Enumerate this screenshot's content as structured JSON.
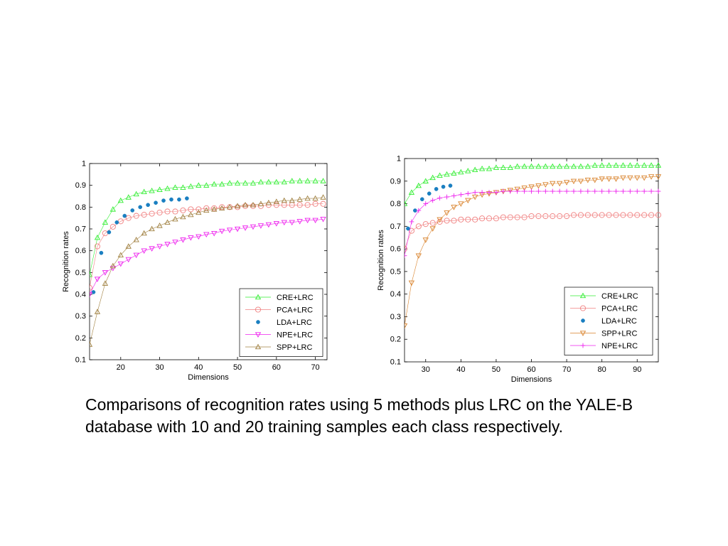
{
  "chart_data": [
    {
      "type": "line",
      "xlabel": "Dimensions",
      "ylabel": "Recognition rates",
      "xlim": [
        12,
        73
      ],
      "ylim": [
        0.1,
        1.0
      ],
      "xticks": [
        20,
        30,
        40,
        50,
        60,
        70
      ],
      "yticks": [
        0.1,
        0.2,
        0.3,
        0.4,
        0.5,
        0.6,
        0.7,
        0.8,
        0.9,
        1
      ],
      "ytick_labels": [
        "0.1",
        "0.2",
        "0.3",
        "0.4",
        "0.5",
        "0.6",
        "0.7",
        "0.8",
        "0.9",
        "1"
      ],
      "grid": false,
      "legend_position": "bottom-right",
      "series": [
        {
          "name": "CRE+LRC",
          "color": "#33ee33",
          "marker": "tri-up",
          "x": [
            12,
            14,
            16,
            18,
            20,
            22,
            24,
            26,
            28,
            30,
            32,
            34,
            36,
            38,
            40,
            42,
            44,
            46,
            48,
            50,
            52,
            54,
            56,
            58,
            60,
            62,
            64,
            66,
            68,
            70,
            72
          ],
          "y": [
            0.49,
            0.66,
            0.73,
            0.79,
            0.83,
            0.845,
            0.86,
            0.87,
            0.875,
            0.88,
            0.885,
            0.89,
            0.89,
            0.895,
            0.9,
            0.9,
            0.905,
            0.905,
            0.91,
            0.91,
            0.91,
            0.91,
            0.915,
            0.915,
            0.915,
            0.915,
            0.92,
            0.92,
            0.92,
            0.92,
            0.92
          ]
        },
        {
          "name": "PCA+LRC",
          "color": "#f08080",
          "marker": "circle",
          "x": [
            12,
            14,
            16,
            18,
            20,
            22,
            24,
            26,
            28,
            30,
            32,
            34,
            36,
            38,
            40,
            42,
            44,
            46,
            48,
            50,
            52,
            54,
            56,
            58,
            60,
            62,
            64,
            66,
            68,
            70,
            72
          ],
          "y": [
            0.43,
            0.62,
            0.68,
            0.71,
            0.735,
            0.75,
            0.76,
            0.765,
            0.77,
            0.775,
            0.78,
            0.78,
            0.785,
            0.79,
            0.79,
            0.795,
            0.795,
            0.8,
            0.8,
            0.8,
            0.805,
            0.805,
            0.805,
            0.81,
            0.81,
            0.81,
            0.81,
            0.81,
            0.81,
            0.815,
            0.815
          ]
        },
        {
          "name": "LDA+LRC",
          "color": "#1a7fc1",
          "marker": "dot",
          "x": [
            13,
            15,
            17,
            19,
            21,
            23,
            25,
            27,
            29,
            31,
            33,
            35,
            37
          ],
          "y": [
            0.41,
            0.59,
            0.685,
            0.73,
            0.76,
            0.785,
            0.8,
            0.81,
            0.82,
            0.83,
            0.835,
            0.835,
            0.84
          ]
        },
        {
          "name": "NPE+LRC",
          "color": "#ee22ee",
          "marker": "tri-down",
          "x": [
            12,
            14,
            16,
            18,
            20,
            22,
            24,
            26,
            28,
            30,
            32,
            34,
            36,
            38,
            40,
            42,
            44,
            46,
            48,
            50,
            52,
            54,
            56,
            58,
            60,
            62,
            64,
            66,
            68,
            70,
            72
          ],
          "y": [
            0.4,
            0.47,
            0.5,
            0.52,
            0.54,
            0.56,
            0.58,
            0.6,
            0.61,
            0.62,
            0.63,
            0.64,
            0.65,
            0.66,
            0.665,
            0.675,
            0.68,
            0.69,
            0.695,
            0.7,
            0.705,
            0.71,
            0.715,
            0.72,
            0.725,
            0.73,
            0.73,
            0.735,
            0.74,
            0.74,
            0.745
          ]
        },
        {
          "name": "SPP+LRC",
          "color": "#a08040",
          "marker": "tri-up",
          "x": [
            12,
            14,
            16,
            18,
            20,
            22,
            24,
            26,
            28,
            30,
            32,
            34,
            36,
            38,
            40,
            42,
            44,
            46,
            48,
            50,
            52,
            54,
            56,
            58,
            60,
            62,
            64,
            66,
            68,
            70,
            72
          ],
          "y": [
            0.17,
            0.32,
            0.45,
            0.53,
            0.58,
            0.62,
            0.65,
            0.68,
            0.7,
            0.715,
            0.73,
            0.745,
            0.755,
            0.765,
            0.775,
            0.785,
            0.79,
            0.795,
            0.8,
            0.805,
            0.81,
            0.81,
            0.815,
            0.82,
            0.825,
            0.83,
            0.83,
            0.835,
            0.84,
            0.84,
            0.845
          ]
        }
      ]
    },
    {
      "type": "line",
      "xlabel": "Dimensions",
      "ylabel": "Recognition rates",
      "xlim": [
        24,
        96
      ],
      "ylim": [
        0.1,
        1.0
      ],
      "xticks": [
        30,
        40,
        50,
        60,
        70,
        80,
        90
      ],
      "yticks": [
        0.1,
        0.2,
        0.3,
        0.4,
        0.5,
        0.6,
        0.7,
        0.8,
        0.9,
        1
      ],
      "ytick_labels": [
        "0.1",
        "0.2",
        "0.3",
        "0.4",
        "0.5",
        "0.6",
        "0.7",
        "0.8",
        "0.9",
        "1"
      ],
      "grid": false,
      "legend_position": "bottom-right",
      "series": [
        {
          "name": "CRE+LRC",
          "color": "#33ee33",
          "marker": "tri-up",
          "x": [
            24,
            26,
            28,
            30,
            32,
            34,
            36,
            38,
            40,
            42,
            44,
            46,
            48,
            50,
            52,
            54,
            56,
            58,
            60,
            62,
            64,
            66,
            68,
            70,
            72,
            74,
            76,
            78,
            80,
            82,
            84,
            86,
            88,
            90,
            92,
            94,
            96
          ],
          "y": [
            0.8,
            0.85,
            0.88,
            0.9,
            0.915,
            0.925,
            0.93,
            0.935,
            0.94,
            0.945,
            0.95,
            0.955,
            0.955,
            0.96,
            0.96,
            0.96,
            0.965,
            0.965,
            0.965,
            0.965,
            0.965,
            0.965,
            0.965,
            0.965,
            0.965,
            0.965,
            0.965,
            0.97,
            0.97,
            0.97,
            0.97,
            0.97,
            0.97,
            0.97,
            0.97,
            0.97,
            0.97
          ]
        },
        {
          "name": "PCA+LRC",
          "color": "#f08080",
          "marker": "circle",
          "x": [
            24,
            26,
            28,
            30,
            32,
            34,
            36,
            38,
            40,
            42,
            44,
            46,
            48,
            50,
            52,
            54,
            56,
            58,
            60,
            62,
            64,
            66,
            68,
            70,
            72,
            74,
            76,
            78,
            80,
            82,
            84,
            86,
            88,
            90,
            92,
            94,
            96
          ],
          "y": [
            0.6,
            0.68,
            0.7,
            0.71,
            0.715,
            0.72,
            0.725,
            0.725,
            0.73,
            0.73,
            0.73,
            0.735,
            0.735,
            0.735,
            0.74,
            0.74,
            0.74,
            0.74,
            0.745,
            0.745,
            0.745,
            0.745,
            0.745,
            0.745,
            0.75,
            0.75,
            0.75,
            0.75,
            0.75,
            0.75,
            0.75,
            0.75,
            0.75,
            0.75,
            0.75,
            0.75,
            0.75
          ]
        },
        {
          "name": "LDA+LRC",
          "color": "#1a7fc1",
          "marker": "dot",
          "x": [
            25,
            27,
            29,
            31,
            33,
            35,
            37
          ],
          "y": [
            0.69,
            0.77,
            0.82,
            0.845,
            0.865,
            0.875,
            0.88
          ]
        },
        {
          "name": "SPP+LRC",
          "color": "#d9822b",
          "marker": "tri-down",
          "x": [
            24,
            26,
            28,
            30,
            32,
            34,
            36,
            38,
            40,
            42,
            44,
            46,
            48,
            50,
            52,
            54,
            56,
            58,
            60,
            62,
            64,
            66,
            68,
            70,
            72,
            74,
            76,
            78,
            80,
            82,
            84,
            86,
            88,
            90,
            92,
            94,
            96
          ],
          "y": [
            0.26,
            0.45,
            0.57,
            0.64,
            0.69,
            0.73,
            0.76,
            0.785,
            0.8,
            0.815,
            0.83,
            0.84,
            0.845,
            0.85,
            0.855,
            0.86,
            0.865,
            0.87,
            0.875,
            0.88,
            0.885,
            0.89,
            0.89,
            0.895,
            0.9,
            0.9,
            0.905,
            0.905,
            0.91,
            0.91,
            0.91,
            0.915,
            0.915,
            0.915,
            0.915,
            0.92,
            0.92
          ]
        },
        {
          "name": "NPE+LRC",
          "color": "#ee22ee",
          "marker": "plus",
          "x": [
            24,
            26,
            28,
            30,
            32,
            34,
            36,
            38,
            40,
            42,
            44,
            46,
            48,
            50,
            52,
            54,
            56,
            58,
            60,
            62,
            64,
            66,
            68,
            70,
            72,
            74,
            76,
            78,
            80,
            82,
            84,
            86,
            88,
            90,
            92,
            94,
            96
          ],
          "y": [
            0.57,
            0.72,
            0.77,
            0.8,
            0.815,
            0.825,
            0.83,
            0.835,
            0.84,
            0.845,
            0.85,
            0.85,
            0.85,
            0.85,
            0.855,
            0.855,
            0.855,
            0.855,
            0.855,
            0.855,
            0.855,
            0.855,
            0.855,
            0.855,
            0.855,
            0.855,
            0.855,
            0.855,
            0.855,
            0.855,
            0.855,
            0.855,
            0.855,
            0.855,
            0.855,
            0.855,
            0.855
          ]
        }
      ]
    }
  ],
  "caption": "Comparisons of recognition rates using 5 methods plus LRC on the YALE-B database with 10 and 20 training samples each class respectively."
}
